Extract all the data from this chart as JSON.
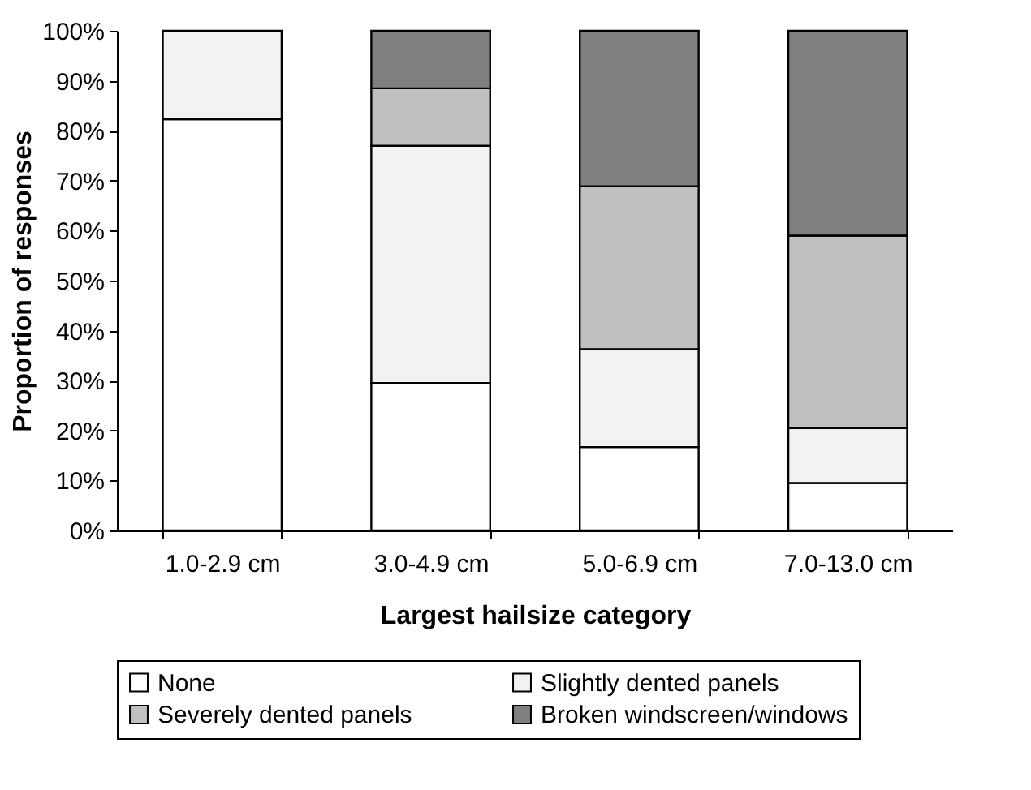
{
  "chart_data": {
    "type": "bar",
    "stacked": true,
    "xlabel": "Largest hailsize category",
    "ylabel": "Proportion of responses",
    "categories": [
      "1.0-2.9 cm",
      "3.0-4.9 cm",
      "5.0-6.9 cm",
      "7.0-13.0 cm"
    ],
    "series": [
      {
        "name": "None",
        "color": "#ffffff",
        "values": [
          82.3,
          29.5,
          16.7,
          9.5
        ]
      },
      {
        "name": "Slightly dented panels",
        "color": "#f2f2f2",
        "values": [
          17.7,
          47.5,
          19.6,
          11
        ]
      },
      {
        "name": "Severely dented panels",
        "color": "#c0c0c0",
        "values": [
          null,
          11.5,
          32.6,
          38.5
        ]
      },
      {
        "name": "Broken windscreen/windows",
        "color": "#808080",
        "values": [
          null,
          11.5,
          31.1,
          41
        ]
      }
    ],
    "ylim": [
      0,
      100
    ],
    "yticks": [
      {
        "value": 0,
        "label": "0%"
      },
      {
        "value": 10,
        "label": "10%"
      },
      {
        "value": 20,
        "label": "20%"
      },
      {
        "value": 30,
        "label": "30%"
      },
      {
        "value": 40,
        "label": "40%"
      },
      {
        "value": 50,
        "label": "50%"
      },
      {
        "value": 60,
        "label": "60%"
      },
      {
        "value": 70,
        "label": "70%"
      },
      {
        "value": 80,
        "label": "80%"
      },
      {
        "value": 90,
        "label": "90%"
      },
      {
        "value": 100,
        "label": "100%"
      }
    ],
    "grid": false,
    "legend": "bottom"
  }
}
